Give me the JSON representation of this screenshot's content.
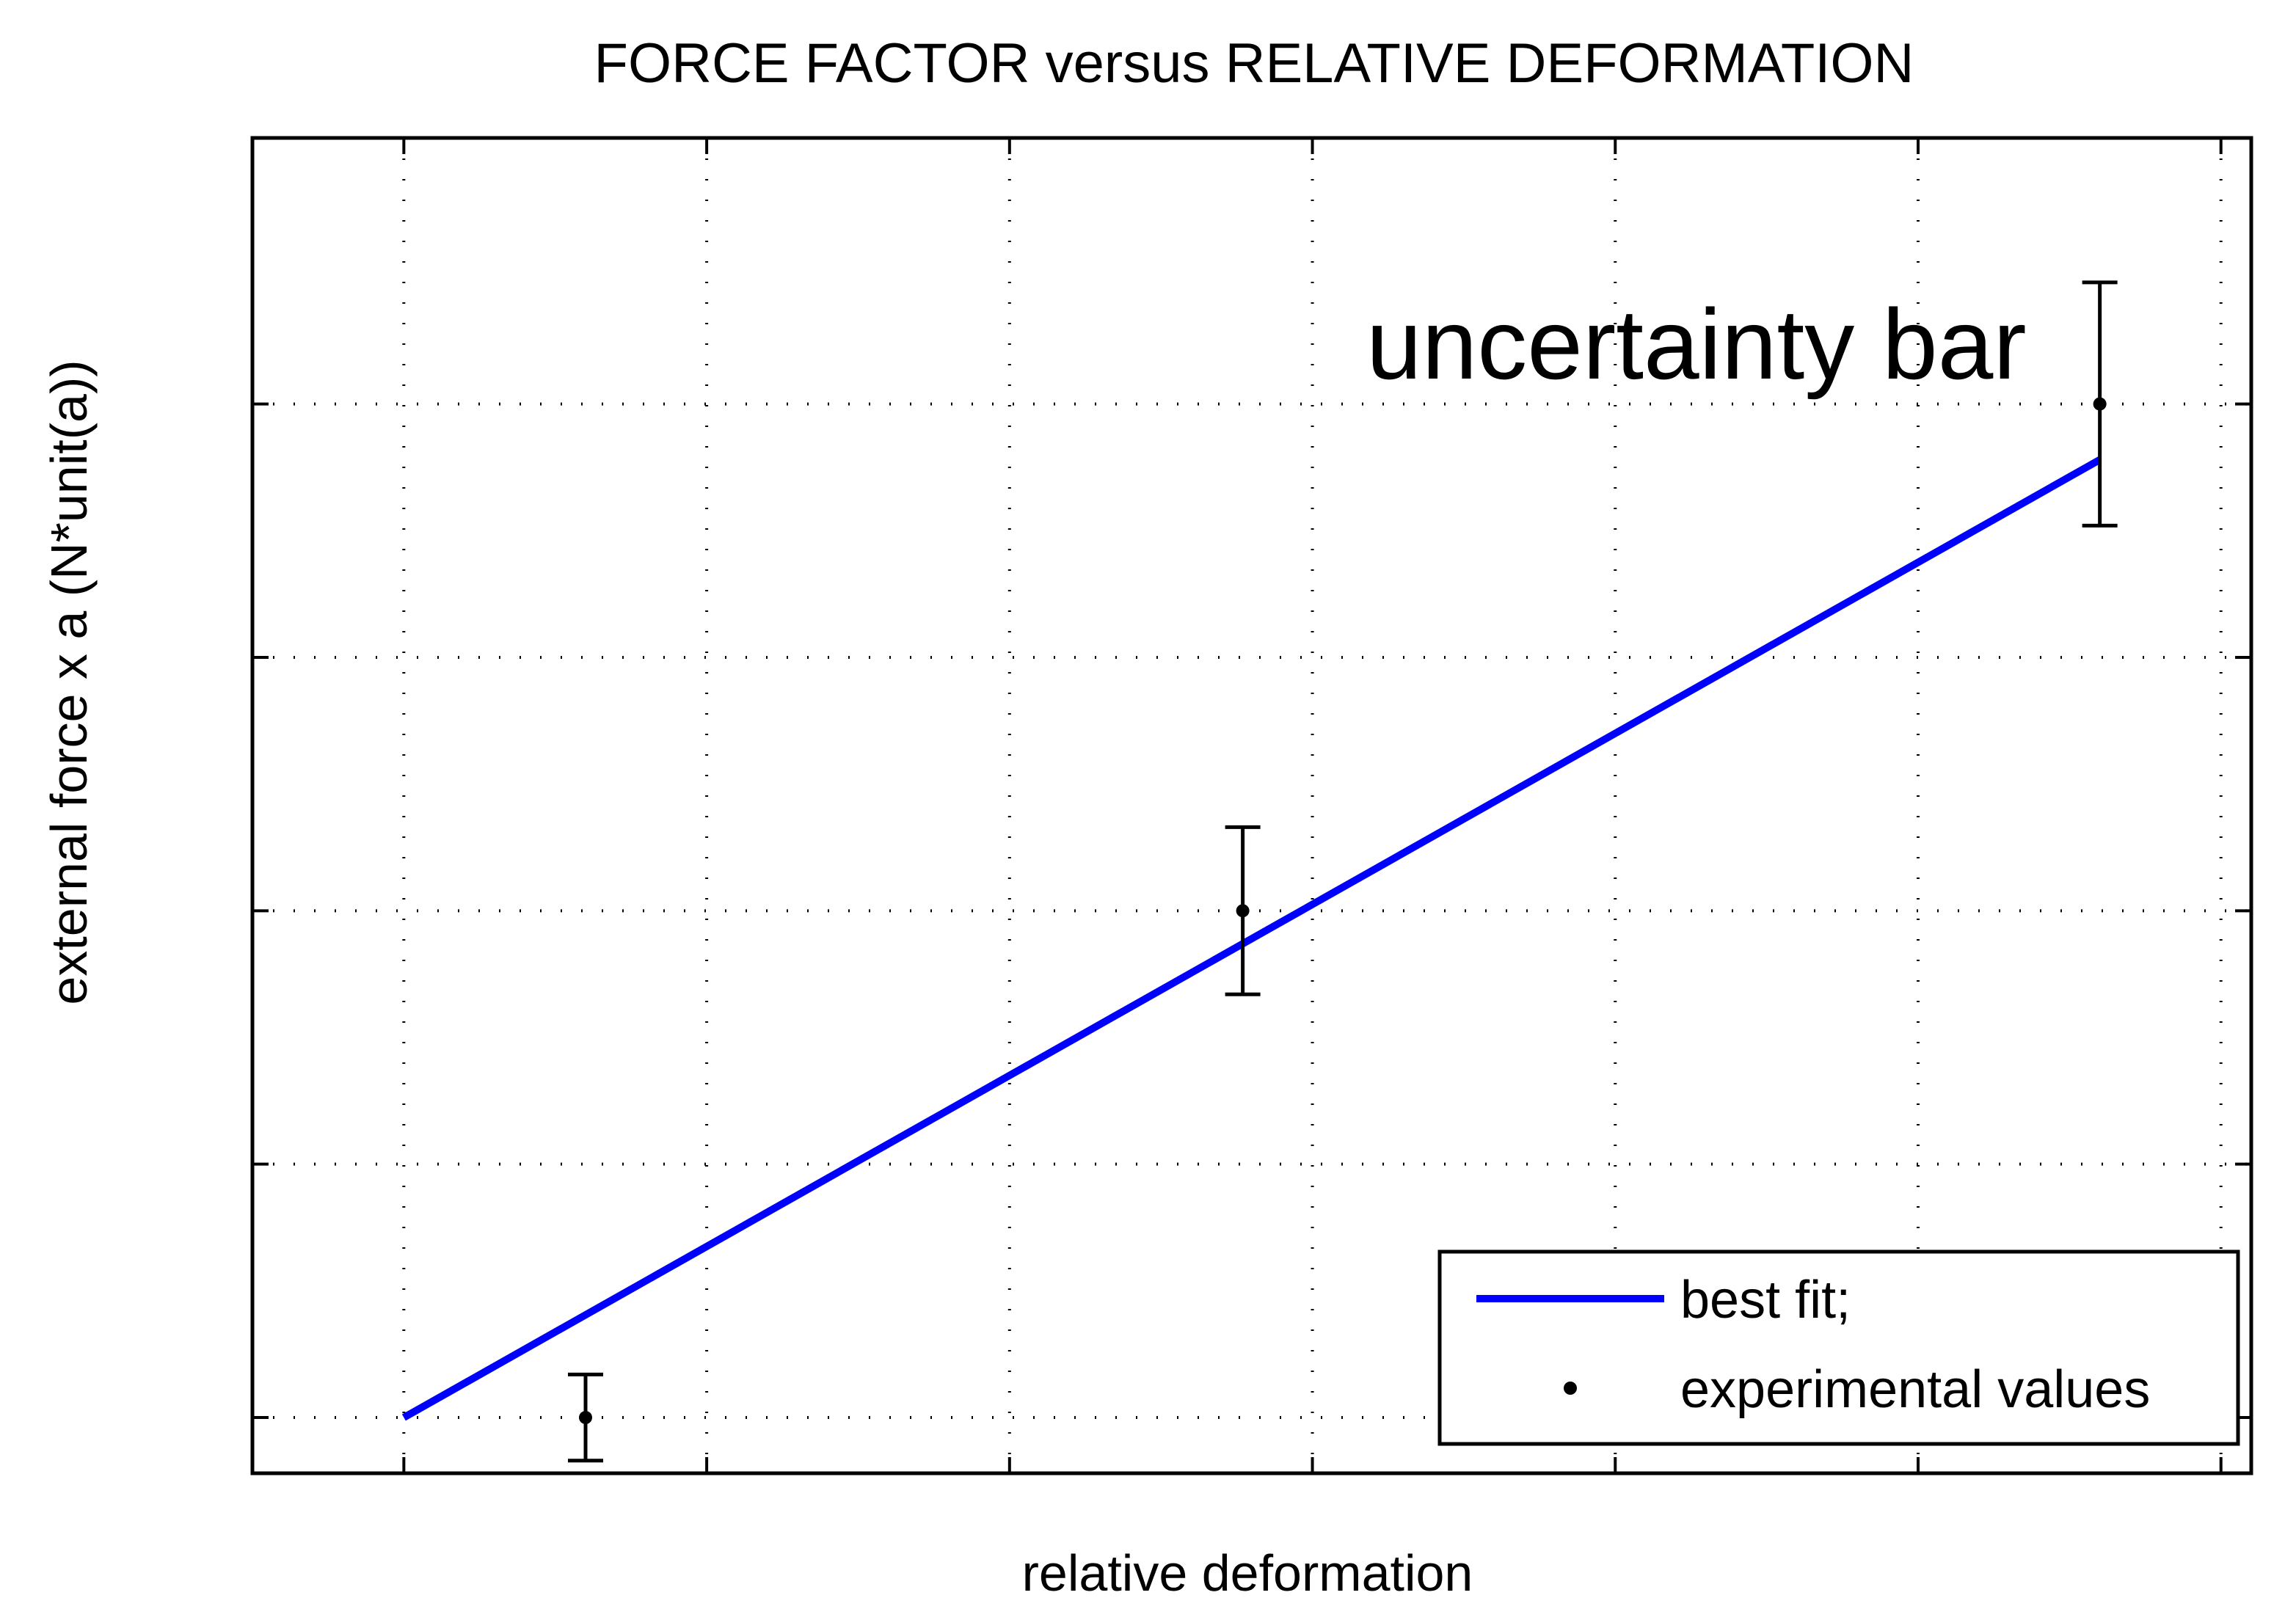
{
  "chart_data": {
    "type": "scatter",
    "title": "FORCE FACTOR versus RELATIVE DEFORMATION",
    "xlabel": "relative deformation",
    "ylabel": "external force x a (N*unit(a))",
    "x_ticks": [
      0,
      1,
      2,
      3,
      4,
      5,
      6
    ],
    "y_ticks": [
      0,
      1,
      2,
      3,
      4
    ],
    "xlim": [
      -0.5,
      6.1
    ],
    "ylim": [
      -0.22,
      5.05
    ],
    "grid": "dotted",
    "legend_position": "bottom-right",
    "annotation": "uncertainty bar",
    "series": [
      {
        "name": "best fit;",
        "type": "line",
        "color": "#0000ff",
        "x": [
          0,
          5.6
        ],
        "y": [
          0,
          3.78
        ]
      },
      {
        "name": "experimental values",
        "type": "scatter-errorbar",
        "color": "#000000",
        "x": [
          0.6,
          2.77,
          5.6
        ],
        "y": [
          0,
          2,
          4
        ],
        "error": [
          0.17,
          0.33,
          0.48
        ]
      }
    ]
  }
}
